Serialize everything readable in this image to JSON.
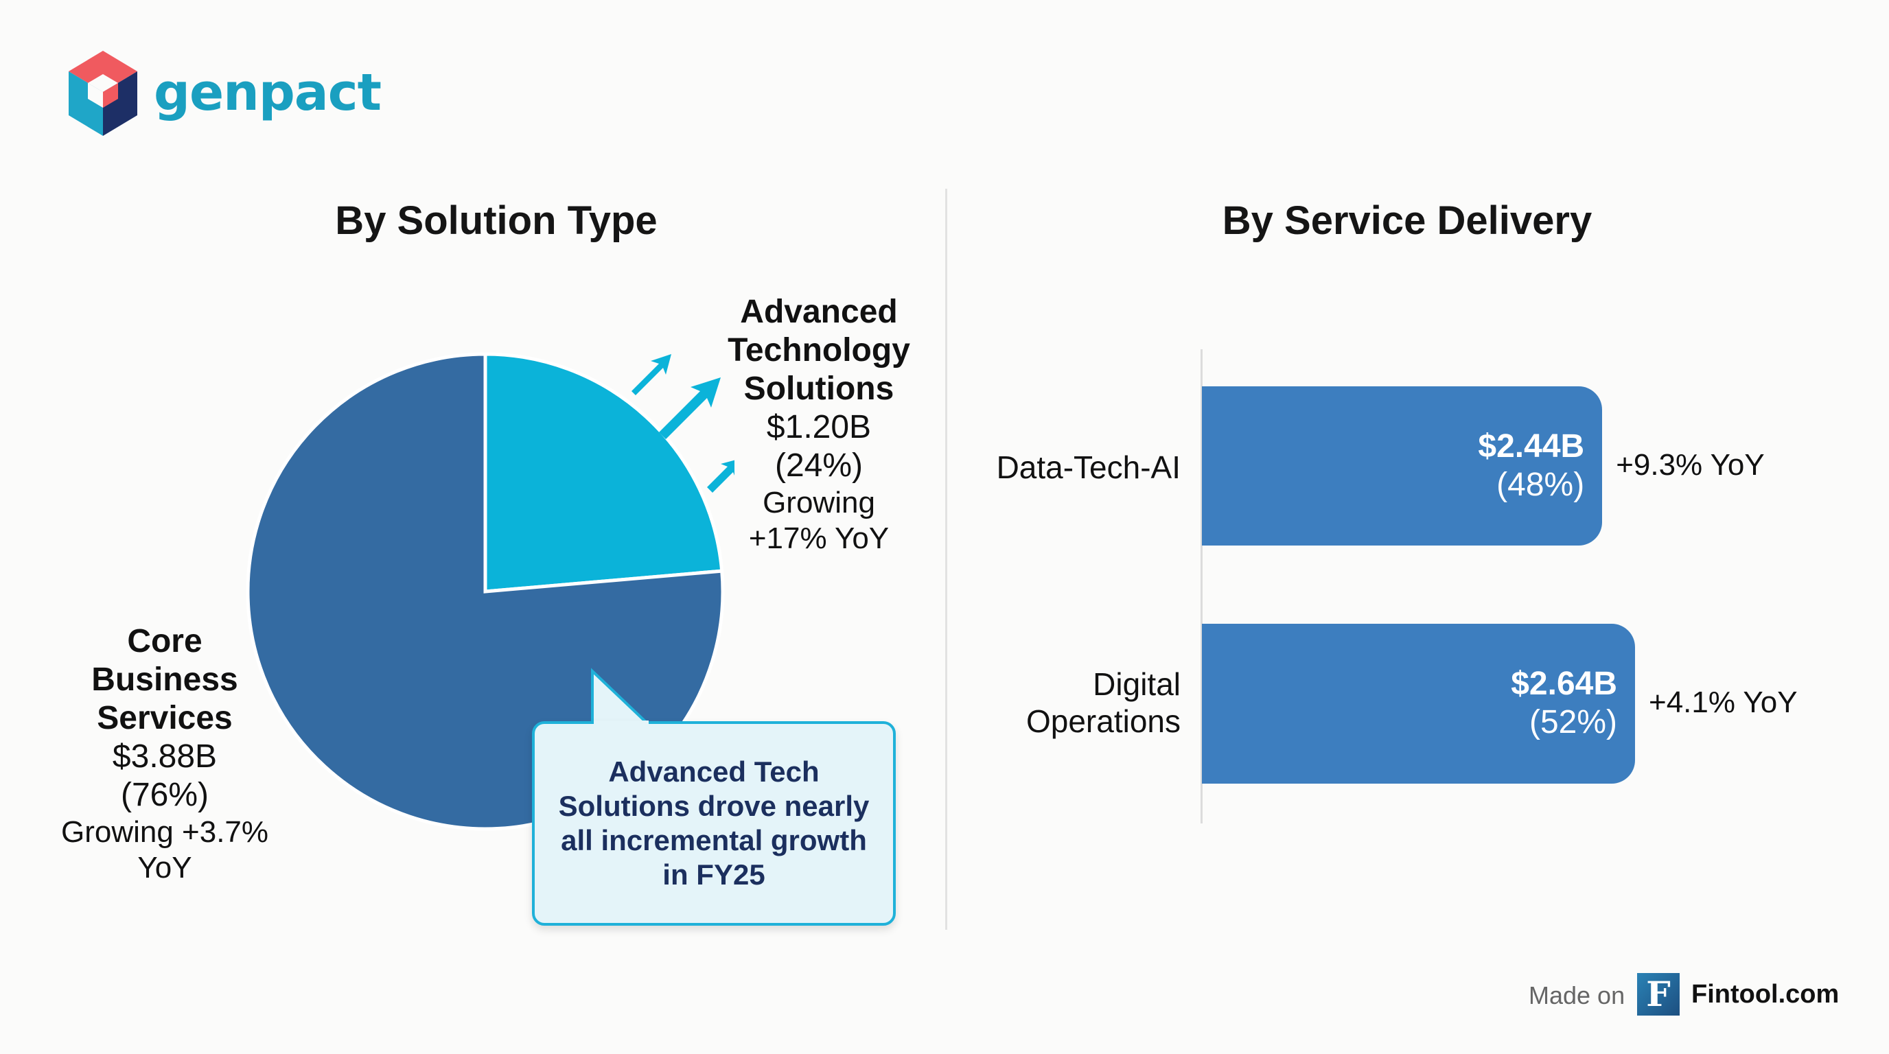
{
  "brand": {
    "name": "genpact"
  },
  "colors": {
    "core": "#346ba2",
    "advanced": "#0bb3d9",
    "bar": "#3d7ebf",
    "callout_border": "#1fb1d9"
  },
  "left_panel": {
    "title": "By Solution Type",
    "advanced": {
      "line1": "Advanced",
      "line2": "Technology",
      "line3": "Solutions",
      "value": "$1.20B",
      "pct": "(24%)",
      "growth1": "Growing",
      "growth2": "+17% YoY"
    },
    "core": {
      "line1": "Core",
      "line2": "Business",
      "line3": "Services",
      "value": "$3.88B",
      "pct": "(76%)",
      "growth1": "Growing +3.7%",
      "growth2": "YoY"
    },
    "callout": "Advanced Tech Solutions drove nearly all incremental growth in FY25"
  },
  "right_panel": {
    "title": "By Service Delivery",
    "bars": [
      {
        "label": "Data-Tech-AI",
        "value": "$2.44B",
        "pct": "(48%)",
        "yoy": "+9.3% YoY"
      },
      {
        "label_line1": "Digital",
        "label_line2": "Operations",
        "value": "$2.64B",
        "pct": "(52%)",
        "yoy": "+4.1% YoY"
      }
    ]
  },
  "chart_data": [
    {
      "type": "pie",
      "title": "By Solution Type",
      "categories": [
        "Advanced Technology Solutions",
        "Core Business Services"
      ],
      "values": [
        1.2,
        3.88
      ],
      "percent": [
        24,
        76
      ],
      "units": "$B",
      "yoy_growth_pct": [
        17,
        3.7
      ]
    },
    {
      "type": "bar",
      "orientation": "horizontal",
      "title": "By Service Delivery",
      "categories": [
        "Data-Tech-AI",
        "Digital Operations"
      ],
      "values": [
        2.44,
        2.64
      ],
      "percent": [
        48,
        52
      ],
      "units": "$B",
      "yoy_growth_pct": [
        9.3,
        4.1
      ]
    }
  ],
  "footer": {
    "made_on": "Made on",
    "f_glyph": "F",
    "site": "Fintool.com"
  }
}
